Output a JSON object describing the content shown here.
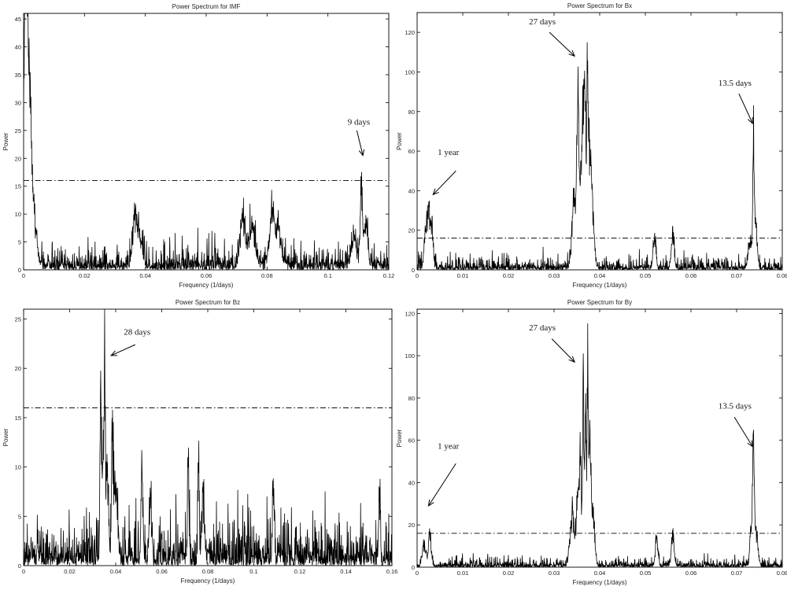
{
  "chart_data": [
    {
      "type": "line",
      "title": "Power Spectrum for IMF",
      "xlabel": "Frequency (1/days)",
      "ylabel": "Power",
      "xlim": [
        0,
        0.12
      ],
      "ylim": [
        0,
        46
      ],
      "xticks": [
        0,
        0.02,
        0.04,
        0.06,
        0.08,
        0.1,
        0.12
      ],
      "yticks": [
        0,
        5,
        10,
        15,
        20,
        25,
        30,
        35,
        40,
        45
      ],
      "threshold": 16,
      "grid": false,
      "seed": 11,
      "baseline": 1.6,
      "noise": 4.0,
      "peaks": [
        {
          "x": 0.0003,
          "y": 45,
          "w": 0.0004
        },
        {
          "x": 0.0008,
          "y": 42,
          "w": 0.0004
        },
        {
          "x": 0.0013,
          "y": 24,
          "w": 0.0005
        },
        {
          "x": 0.0019,
          "y": 20,
          "w": 0.0005
        },
        {
          "x": 0.0025,
          "y": 15,
          "w": 0.0006
        },
        {
          "x": 0.0035,
          "y": 8,
          "w": 0.001
        },
        {
          "x": 0.0365,
          "y": 8.5,
          "w": 0.0008
        },
        {
          "x": 0.038,
          "y": 6,
          "w": 0.001
        },
        {
          "x": 0.072,
          "y": 11,
          "w": 0.0008
        },
        {
          "x": 0.075,
          "y": 9,
          "w": 0.001
        },
        {
          "x": 0.0815,
          "y": 11,
          "w": 0.0008
        },
        {
          "x": 0.0835,
          "y": 8,
          "w": 0.001
        },
        {
          "x": 0.111,
          "y": 18.5,
          "w": 0.0004
        },
        {
          "x": 0.1125,
          "y": 10,
          "w": 0.0006
        },
        {
          "x": 0.1085,
          "y": 7,
          "w": 0.0007
        }
      ],
      "annotations": [
        {
          "text": "9 days",
          "tx": 0.1065,
          "ty": 26,
          "ax": 0.1095,
          "ay": 25,
          "bx": 0.1115,
          "by": 20.5
        }
      ]
    },
    {
      "type": "line",
      "title": "Power Spectrum for Bx",
      "xlabel": "Frequency (1/days)",
      "ylabel": "Power",
      "xlim": [
        0,
        0.08
      ],
      "ylim": [
        0,
        130
      ],
      "xticks": [
        0,
        0.01,
        0.02,
        0.03,
        0.04,
        0.05,
        0.06,
        0.07,
        0.08
      ],
      "yticks": [
        0,
        20,
        40,
        60,
        80,
        100,
        120
      ],
      "threshold": 16,
      "grid": false,
      "seed": 23,
      "baseline": 2.2,
      "noise": 6,
      "peaks": [
        {
          "x": 0.0025,
          "y": 33,
          "w": 0.0003
        },
        {
          "x": 0.0018,
          "y": 22,
          "w": 0.0003
        },
        {
          "x": 0.0032,
          "y": 26,
          "w": 0.0003
        },
        {
          "x": 0.0345,
          "y": 45,
          "w": 0.0005
        },
        {
          "x": 0.0352,
          "y": 88,
          "w": 0.0002
        },
        {
          "x": 0.0358,
          "y": 58,
          "w": 0.0003
        },
        {
          "x": 0.0364,
          "y": 100,
          "w": 0.0002
        },
        {
          "x": 0.0368,
          "y": 116,
          "w": 0.00015
        },
        {
          "x": 0.0373,
          "y": 127,
          "w": 0.00015
        },
        {
          "x": 0.0378,
          "y": 70,
          "w": 0.0003
        },
        {
          "x": 0.0384,
          "y": 35,
          "w": 0.0004
        },
        {
          "x": 0.052,
          "y": 19,
          "w": 0.0003
        },
        {
          "x": 0.056,
          "y": 21,
          "w": 0.0003
        },
        {
          "x": 0.0737,
          "y": 74,
          "w": 0.00015
        },
        {
          "x": 0.0742,
          "y": 30,
          "w": 0.0003
        },
        {
          "x": 0.073,
          "y": 18,
          "w": 0.0004
        }
      ],
      "annotations": [
        {
          "text": "1 year",
          "tx": 0.0045,
          "ty": 58,
          "ax": 0.0085,
          "ay": 50,
          "bx": 0.0035,
          "by": 38
        },
        {
          "text": "27 days",
          "tx": 0.0245,
          "ty": 124,
          "ax": 0.029,
          "ay": 120,
          "bx": 0.0345,
          "by": 108
        },
        {
          "text": "13.5 days",
          "tx": 0.066,
          "ty": 93,
          "ax": 0.0705,
          "ay": 89,
          "bx": 0.0735,
          "by": 74
        }
      ]
    },
    {
      "type": "line",
      "title": "Power Spectrum for Bz",
      "xlabel": "Frequency (1/days)",
      "ylabel": "Power",
      "xlim": [
        0,
        0.16
      ],
      "ylim": [
        0,
        26
      ],
      "xticks": [
        0,
        0.02,
        0.04,
        0.06,
        0.08,
        0.1,
        0.12,
        0.14,
        0.16
      ],
      "yticks": [
        0,
        5,
        10,
        15,
        20,
        25
      ],
      "threshold": 16,
      "grid": false,
      "seed": 37,
      "baseline": 1.7,
      "noise": 3.6,
      "peaks": [
        {
          "x": 0.0335,
          "y": 18.7,
          "w": 0.0003
        },
        {
          "x": 0.0345,
          "y": 13,
          "w": 0.0005
        },
        {
          "x": 0.0352,
          "y": 24.2,
          "w": 0.0002
        },
        {
          "x": 0.0362,
          "y": 11,
          "w": 0.0006
        },
        {
          "x": 0.0385,
          "y": 16,
          "w": 0.0003
        },
        {
          "x": 0.04,
          "y": 9,
          "w": 0.0008
        },
        {
          "x": 0.0515,
          "y": 10,
          "w": 0.0004
        },
        {
          "x": 0.055,
          "y": 7.5,
          "w": 0.0005
        },
        {
          "x": 0.0715,
          "y": 11.7,
          "w": 0.0003
        },
        {
          "x": 0.076,
          "y": 12.1,
          "w": 0.0003
        },
        {
          "x": 0.078,
          "y": 7,
          "w": 0.0006
        },
        {
          "x": 0.1085,
          "y": 9.5,
          "w": 0.0004
        },
        {
          "x": 0.1545,
          "y": 9.3,
          "w": 0.0003
        }
      ],
      "annotations": [
        {
          "text": "28 days",
          "tx": 0.0435,
          "ty": 23.4,
          "ax": 0.0485,
          "ay": 22.4,
          "bx": 0.038,
          "by": 21.3
        }
      ]
    },
    {
      "type": "line",
      "title": "Power Spectrum for By",
      "xlabel": "Frequency (1/days)",
      "ylabel": "Power",
      "xlim": [
        0,
        0.08
      ],
      "ylim": [
        0,
        122
      ],
      "xticks": [
        0,
        0.01,
        0.02,
        0.03,
        0.04,
        0.05,
        0.06,
        0.07,
        0.08
      ],
      "yticks": [
        0,
        20,
        40,
        60,
        80,
        100,
        120
      ],
      "threshold": 16,
      "grid": false,
      "seed": 53,
      "baseline": 1.5,
      "noise": 4.0,
      "peaks": [
        {
          "x": 0.0028,
          "y": 18,
          "w": 0.0003
        },
        {
          "x": 0.0015,
          "y": 13,
          "w": 0.0004
        },
        {
          "x": 0.034,
          "y": 30,
          "w": 0.0005
        },
        {
          "x": 0.0352,
          "y": 42,
          "w": 0.0003
        },
        {
          "x": 0.0358,
          "y": 60,
          "w": 0.0002
        },
        {
          "x": 0.0364,
          "y": 98,
          "w": 0.00015
        },
        {
          "x": 0.0369,
          "y": 82,
          "w": 0.0002
        },
        {
          "x": 0.0374,
          "y": 114,
          "w": 0.00015
        },
        {
          "x": 0.0379,
          "y": 68,
          "w": 0.0002
        },
        {
          "x": 0.0385,
          "y": 30,
          "w": 0.0004
        },
        {
          "x": 0.0525,
          "y": 14,
          "w": 0.0003
        },
        {
          "x": 0.056,
          "y": 18,
          "w": 0.0003
        },
        {
          "x": 0.0737,
          "y": 53,
          "w": 0.00015
        },
        {
          "x": 0.0733,
          "y": 29,
          "w": 0.0003
        },
        {
          "x": 0.0742,
          "y": 22,
          "w": 0.0004
        }
      ],
      "annotations": [
        {
          "text": "1 year",
          "tx": 0.0045,
          "ty": 56,
          "ax": 0.0085,
          "ay": 49,
          "bx": 0.0025,
          "by": 29
        },
        {
          "text": "27 days",
          "tx": 0.0245,
          "ty": 112,
          "ax": 0.0295,
          "ay": 108,
          "bx": 0.0345,
          "by": 97
        },
        {
          "text": "13.5 days",
          "tx": 0.066,
          "ty": 75,
          "ax": 0.0695,
          "ay": 71,
          "bx": 0.0735,
          "by": 57
        }
      ]
    }
  ]
}
